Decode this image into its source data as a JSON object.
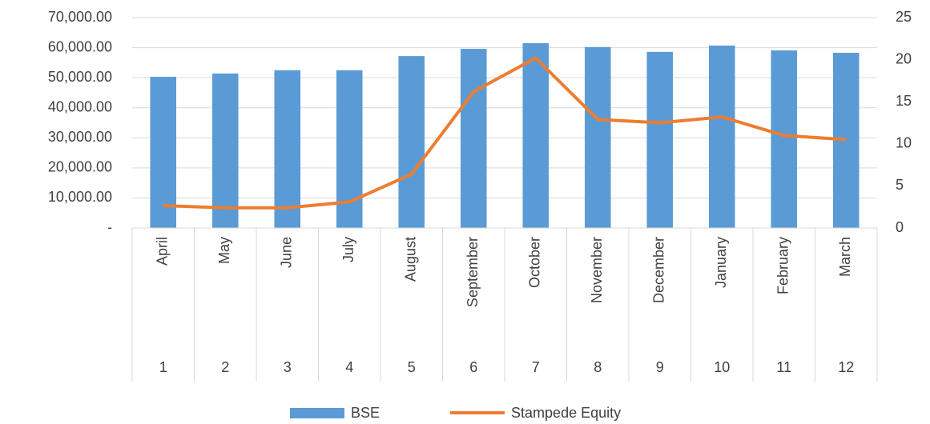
{
  "chart_data": {
    "type": "bar-line",
    "categories": [
      "April",
      "May",
      "June",
      "July",
      "August",
      "September",
      "October",
      "November",
      "December",
      "January",
      "February",
      "March"
    ],
    "category_groups": [
      "1",
      "2",
      "3",
      "4",
      "5",
      "6",
      "7",
      "8",
      "9",
      "10",
      "11",
      "12"
    ],
    "series": [
      {
        "name": "BSE",
        "type": "bar",
        "color": "#5b9bd5",
        "axis": "y",
        "values": [
          50300,
          51400,
          52500,
          52500,
          57200,
          59600,
          61500,
          60200,
          58600,
          60700,
          59100,
          58300
        ]
      },
      {
        "name": "Stampede Equity",
        "type": "line",
        "color": "#ed7d31",
        "axis": "y2",
        "values": [
          2.66,
          2.4,
          2.4,
          3.1,
          6.4,
          16.2,
          20.2,
          12.9,
          12.5,
          13.2,
          11.0,
          10.5
        ]
      }
    ],
    "ylim": [
      0,
      70000
    ],
    "yticks": [
      {
        "value": 0,
        "label": "-"
      },
      {
        "value": 10000,
        "label": "10,000.00"
      },
      {
        "value": 20000,
        "label": "20,000.00"
      },
      {
        "value": 30000,
        "label": "30,000.00"
      },
      {
        "value": 40000,
        "label": "40,000.00"
      },
      {
        "value": 50000,
        "label": "50,000.00"
      },
      {
        "value": 60000,
        "label": "60,000.00"
      },
      {
        "value": 70000,
        "label": "70,000.00"
      }
    ],
    "y2lim": [
      0,
      25
    ],
    "y2ticks": [
      0,
      5,
      10,
      15,
      20,
      25
    ],
    "grid": true,
    "legend": "bottom"
  }
}
